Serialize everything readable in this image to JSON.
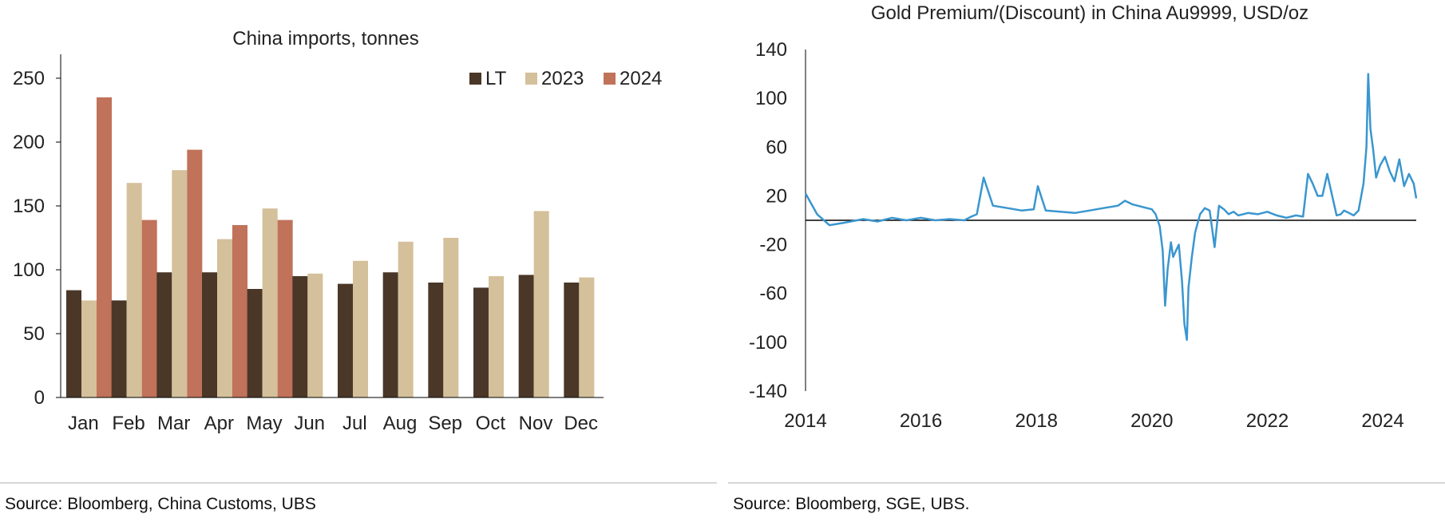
{
  "left_chart": {
    "source": "Source: Bloomberg, China Customs, UBS"
  },
  "right_chart": {
    "source": "Source: Bloomberg, SGE, UBS."
  },
  "colors": {
    "LT": "#4a3728",
    "2023": "#d4c09a",
    "2024": "#c0725a",
    "line": "#3a96cf",
    "axis": "#000000"
  },
  "chart_data": [
    {
      "type": "bar",
      "title": "China imports, tonnes",
      "categories": [
        "Jan",
        "Feb",
        "Mar",
        "Apr",
        "May",
        "Jun",
        "Jul",
        "Aug",
        "Sep",
        "Oct",
        "Nov",
        "Dec"
      ],
      "series": [
        {
          "name": "LT",
          "values": [
            84,
            76,
            98,
            98,
            85,
            95,
            89,
            98,
            90,
            86,
            96,
            90
          ]
        },
        {
          "name": "2023",
          "values": [
            76,
            168,
            178,
            124,
            148,
            97,
            107,
            122,
            125,
            95,
            146,
            94
          ]
        },
        {
          "name": "2024",
          "values": [
            235,
            139,
            194,
            135,
            139,
            null,
            null,
            null,
            null,
            null,
            null,
            null
          ]
        }
      ],
      "ylim": [
        0,
        250
      ],
      "yticks": [
        0,
        50,
        100,
        150,
        200,
        250
      ],
      "legend": "top-right",
      "grid": false
    },
    {
      "type": "line",
      "title": "Gold Premium/(Discount) in China Au9999, USD/oz",
      "xlim": [
        "2014-01-01",
        "2024-07-31"
      ],
      "xticks": [
        "2014",
        "2016",
        "2018",
        "2020",
        "2022",
        "2024"
      ],
      "ylim": [
        -140,
        140
      ],
      "yticks": [
        140,
        100,
        60,
        20,
        -20,
        -60,
        -100,
        -140
      ],
      "reference_line": 0,
      "grid": false,
      "series": [
        {
          "x": [
            "2014-01-01",
            "2014-03-15",
            "2014-06-01",
            "2014-09-01",
            "2015-01-01",
            "2015-04-01",
            "2015-07-01",
            "2015-10-01",
            "2016-01-01",
            "2016-04-01",
            "2016-07-01",
            "2016-10-01",
            "2016-11-15",
            "2016-12-20",
            "2017-02-01",
            "2017-04-01",
            "2017-07-01",
            "2017-10-01",
            "2017-12-15",
            "2018-01-10",
            "2018-03-01",
            "2018-06-01",
            "2018-09-01",
            "2018-12-01",
            "2019-03-01",
            "2019-06-01",
            "2019-07-15",
            "2019-09-01",
            "2019-11-01",
            "2020-01-01",
            "2020-01-25",
            "2020-02-20",
            "2020-03-10",
            "2020-03-25",
            "2020-04-10",
            "2020-05-01",
            "2020-05-15",
            "2020-06-01",
            "2020-06-20",
            "2020-07-10",
            "2020-07-25",
            "2020-08-10",
            "2020-08-20",
            "2020-09-10",
            "2020-10-01",
            "2020-11-01",
            "2020-12-01",
            "2021-01-01",
            "2021-02-01",
            "2021-03-01",
            "2021-04-01",
            "2021-05-01",
            "2021-06-01",
            "2021-07-01",
            "2021-09-01",
            "2021-11-01",
            "2022-01-01",
            "2022-03-01",
            "2022-05-01",
            "2022-07-01",
            "2022-08-15",
            "2022-09-15",
            "2022-10-15",
            "2022-11-15",
            "2022-12-15",
            "2023-01-15",
            "2023-02-15",
            "2023-03-15",
            "2023-04-10",
            "2023-05-01",
            "2023-06-01",
            "2023-07-01",
            "2023-08-01",
            "2023-09-01",
            "2023-09-20",
            "2023-10-01",
            "2023-10-15",
            "2023-11-01",
            "2023-11-20",
            "2023-12-15",
            "2024-01-15",
            "2024-02-15",
            "2024-03-15",
            "2024-04-15",
            "2024-05-15",
            "2024-06-15",
            "2024-07-15",
            "2024-07-31"
          ],
          "y": [
            22,
            5,
            -4,
            -2,
            1,
            -1,
            2,
            0,
            2,
            0,
            1,
            0,
            3,
            5,
            35,
            12,
            10,
            8,
            9,
            28,
            8,
            7,
            6,
            8,
            10,
            12,
            16,
            13,
            11,
            9,
            5,
            -5,
            -25,
            -70,
            -40,
            -18,
            -30,
            -25,
            -20,
            -50,
            -85,
            -98,
            -55,
            -30,
            -10,
            5,
            10,
            8,
            -22,
            12,
            9,
            5,
            7,
            4,
            6,
            5,
            7,
            4,
            2,
            4,
            3,
            38,
            30,
            20,
            20,
            38,
            20,
            4,
            5,
            8,
            6,
            4,
            8,
            30,
            60,
            120,
            75,
            58,
            35,
            45,
            52,
            40,
            32,
            50,
            28,
            38,
            30,
            18
          ]
        }
      ]
    }
  ]
}
